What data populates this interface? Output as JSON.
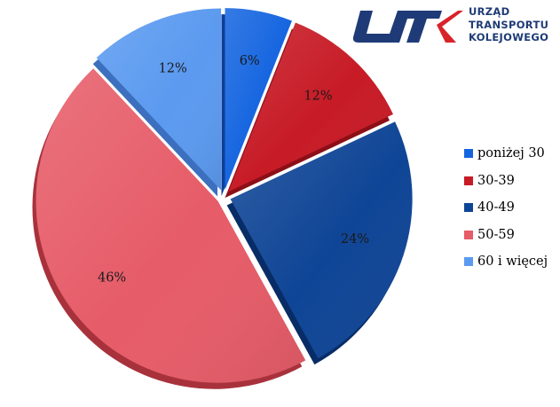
{
  "logo": {
    "line1": "URZĄD",
    "line2": "TRANSPORTU",
    "line3": "KOLEJOWEGO",
    "colors": {
      "dark": "#1f3b77",
      "accent": "#d8232a"
    }
  },
  "chart_data": {
    "type": "pie",
    "style": "exploded-3d",
    "legend_position": "right",
    "categories": [
      "poniżej 30",
      "30-39",
      "40-49",
      "50-59",
      "60 i więcej"
    ],
    "values": [
      6,
      12,
      24,
      46,
      12
    ],
    "data_labels": [
      "6%",
      "12%",
      "24%",
      "46%",
      "12%"
    ],
    "colors": [
      "#1565e0",
      "#c71b26",
      "#0f4596",
      "#e65c68",
      "#5b9af0"
    ],
    "side_colors": [
      "#0b3f9a",
      "#8c0f17",
      "#082c66",
      "#a8323c",
      "#3c70bf"
    ]
  }
}
